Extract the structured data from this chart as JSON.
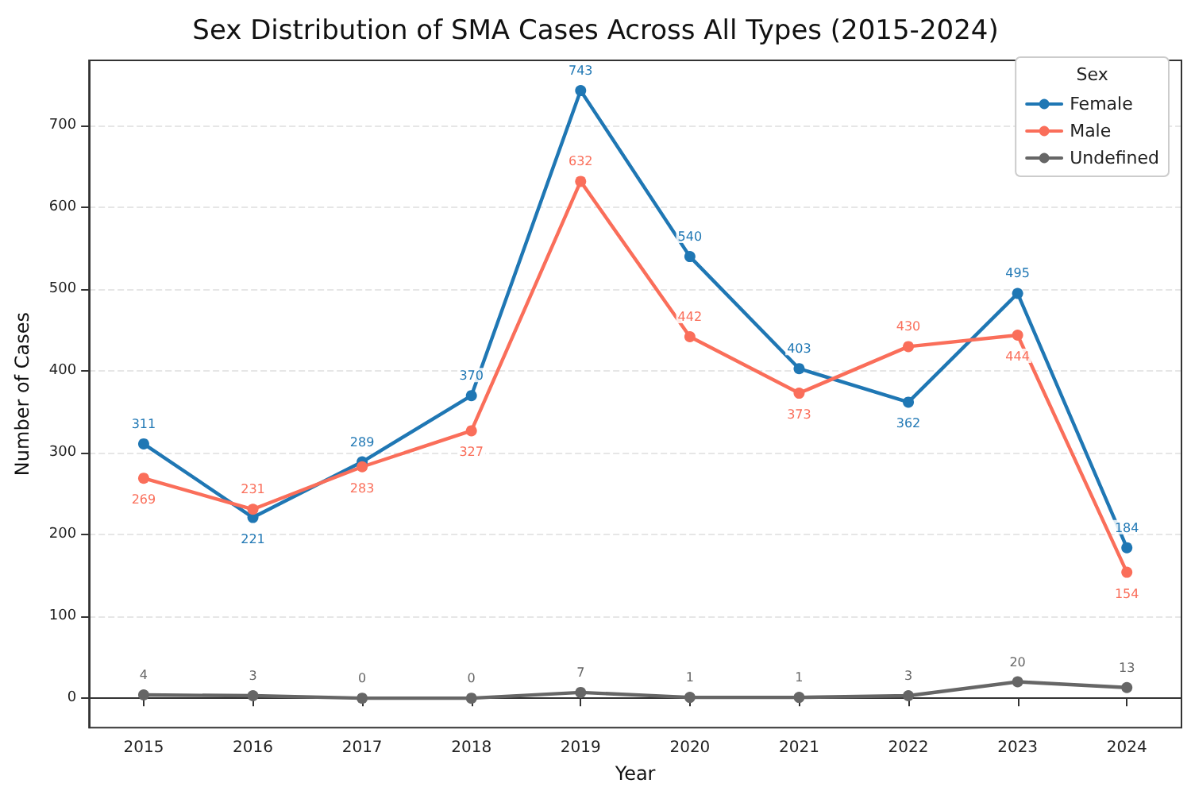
{
  "chart_data": {
    "type": "line",
    "title": "Sex Distribution of SMA Cases Across All Types (2015-2024)",
    "xlabel": "Year",
    "ylabel": "Number of Cases",
    "legend_title": "Sex",
    "categories": [
      "2015",
      "2016",
      "2017",
      "2018",
      "2019",
      "2020",
      "2021",
      "2022",
      "2023",
      "2024"
    ],
    "series": [
      {
        "name": "Female",
        "color": "#1f77b4",
        "values": [
          311,
          221,
          289,
          370,
          743,
          540,
          403,
          362,
          495,
          184
        ]
      },
      {
        "name": "Male",
        "color": "#fa6e5a",
        "values": [
          269,
          231,
          283,
          327,
          632,
          442,
          373,
          430,
          444,
          154
        ]
      },
      {
        "name": "Undefined",
        "color": "#666666",
        "values": [
          4,
          3,
          0,
          0,
          7,
          1,
          1,
          3,
          20,
          13
        ]
      }
    ],
    "ylim": [
      -36,
      780
    ],
    "yticks": [
      0,
      100,
      200,
      300,
      400,
      500,
      600,
      700
    ],
    "grid": "y",
    "legend": "top right",
    "marker": "circle",
    "line_style": "solid",
    "data_labels": true
  }
}
